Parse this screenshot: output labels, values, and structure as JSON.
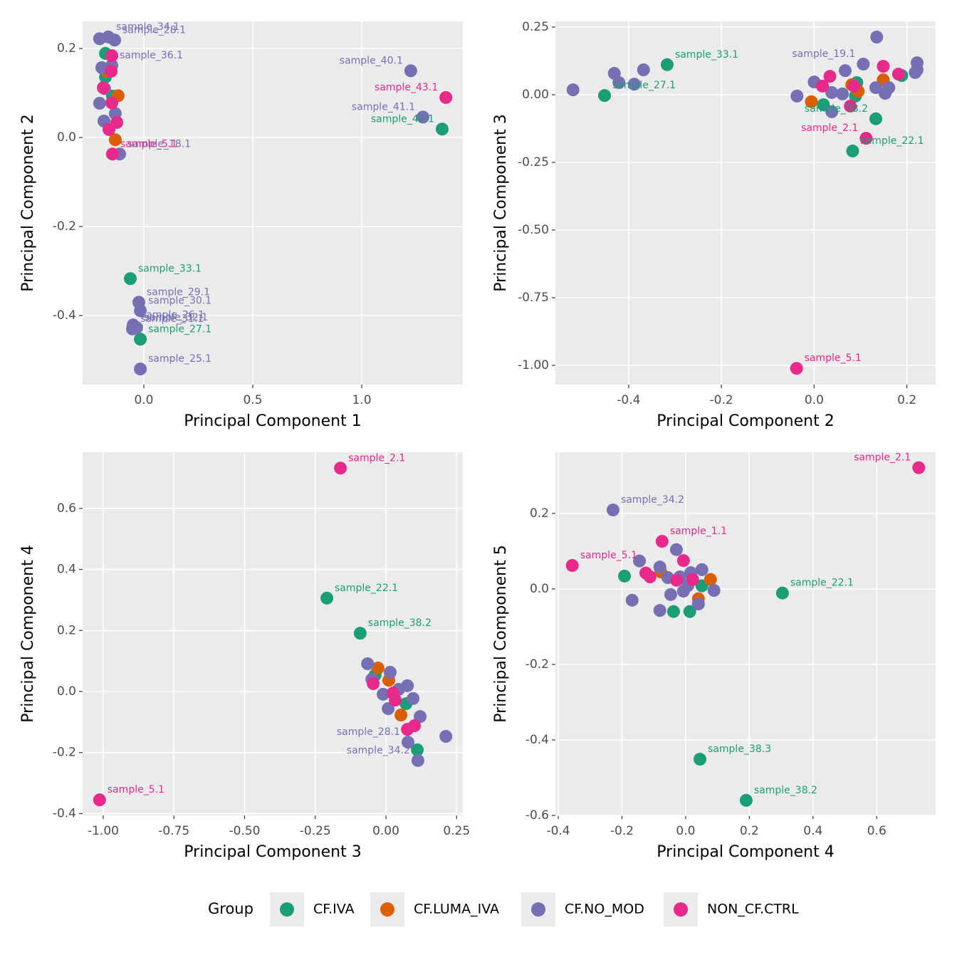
{
  "chart_data": [
    {
      "type": "scatter",
      "xlabel": "Principal Component 1",
      "ylabel": "Principal Component 2",
      "legend_title": "Group",
      "xlim": [
        -0.281,
        1.464
      ],
      "ylim": [
        -0.555,
        0.261
      ],
      "xticks": [
        {
          "value": 0,
          "label": "0.0"
        },
        0.5,
        {
          "value": 1,
          "label": "1.0"
        }
      ],
      "yticks": [
        -0.4,
        -0.2,
        {
          "value": 0,
          "label": "0.0"
        },
        0.2
      ],
      "series": [
        {
          "name": "CF.IVA",
          "color": "#1b9e77",
          "x": [
            -0.176,
            -0.176,
            -0.144,
            -0.062,
            -0.016,
            1.369
          ],
          "values": [
            0.189,
            0.136,
            0.093,
            -0.317,
            -0.453,
            0.019
          ],
          "point_labels": [
            null,
            null,
            null,
            "sample_33.1",
            "sample_27.1",
            "sample_42.1"
          ]
        },
        {
          "name": "CF.LUMA_IVA",
          "color": "#d95f02",
          "x": [
            -0.17,
            -0.118,
            -0.131
          ],
          "values": [
            0.149,
            0.094,
            -0.005
          ],
          "point_labels": [
            null,
            null,
            null
          ]
        },
        {
          "name": "CF.NO_MOD",
          "color": "#7570b3",
          "x": [
            -0.203,
            -0.163,
            -0.134,
            -0.193,
            -0.147,
            -0.18,
            -0.203,
            -0.131,
            -0.183,
            -0.111,
            1.225,
            1.281,
            -0.023,
            -0.016,
            -0.049,
            -0.033,
            -0.052,
            -0.016
          ],
          "values": [
            0.222,
            0.226,
            0.219,
            0.157,
            0.162,
            0.11,
            0.077,
            0.054,
            0.037,
            -0.037,
            0.15,
            0.046,
            -0.37,
            -0.389,
            -0.421,
            -0.427,
            -0.43,
            -0.52
          ],
          "point_labels": [
            null,
            "sample_34.1",
            "sample_28.1",
            null,
            "sample_36.1",
            null,
            null,
            null,
            null,
            "sample_18.1",
            "sample_40.1",
            "sample_41.1",
            "sample_29.1",
            "sample_30.1",
            "sample_26.1",
            "sample_32.1",
            "sample_31.1",
            "sample_25.1"
          ]
        },
        {
          "name": "NON_CF.CTRL",
          "color": "#e7298a",
          "x": [
            -0.147,
            -0.15,
            -0.186,
            -0.147,
            -0.124,
            -0.16,
            -0.144,
            1.386
          ],
          "values": [
            0.184,
            0.149,
            0.112,
            0.078,
            0.034,
            0.018,
            -0.037,
            0.09
          ],
          "point_labels": [
            null,
            null,
            null,
            null,
            null,
            null,
            "sample_5.1",
            "sample_43.1"
          ]
        }
      ]
    },
    {
      "type": "scatter",
      "xlabel": "Principal Component 2",
      "ylabel": "Principal Component 3",
      "xlim": [
        -0.558,
        0.262
      ],
      "ylim": [
        -1.071,
        0.271
      ],
      "xticks": [
        -0.4,
        -0.2,
        {
          "value": 0,
          "label": "0.0"
        },
        0.2
      ],
      "yticks": [
        {
          "value": -1,
          "label": "-1.00"
        },
        -0.75,
        {
          "value": -0.5,
          "label": "-0.50"
        },
        -0.25,
        {
          "value": 0,
          "label": "0.00"
        },
        0.25
      ],
      "series": [
        {
          "name": "CF.IVA",
          "color": "#1b9e77",
          "x": [
            -0.452,
            -0.317,
            0.02,
            0.092,
            0.089,
            0.133,
            0.083,
            0.189
          ],
          "values": [
            -0.003,
            0.111,
            -0.037,
            0.045,
            -0.005,
            -0.089,
            -0.208,
            0.071
          ],
          "point_labels": [
            "sample_27.1",
            "sample_33.1",
            null,
            null,
            null,
            "sample_38.2",
            "sample_22.1",
            null
          ]
        },
        {
          "name": "CF.LUMA_IVA",
          "color": "#d95f02",
          "x": [
            -0.006,
            0.081,
            0.149,
            0.095
          ],
          "values": [
            -0.026,
            0.037,
            0.055,
            0.013
          ],
          "point_labels": [
            null,
            null,
            null,
            null
          ]
        },
        {
          "name": "CF.NO_MOD",
          "color": "#7570b3",
          "x": [
            -0.52,
            -0.431,
            -0.421,
            -0.388,
            -0.368,
            -0.037,
            0.0,
            0.038,
            0.038,
            0.061,
            0.067,
            0.106,
            0.135,
            0.133,
            0.153,
            0.161,
            0.222,
            0.222,
            0.218
          ],
          "values": [
            0.018,
            0.079,
            0.045,
            0.039,
            0.092,
            -0.005,
            0.047,
            0.008,
            -0.063,
            0.003,
            0.089,
            0.113,
            0.213,
            0.026,
            0.005,
            0.026,
            0.118,
            0.092,
            0.082
          ],
          "point_labels": [
            null,
            null,
            null,
            null,
            null,
            null,
            null,
            null,
            null,
            null,
            null,
            "sample_19.1",
            null,
            null,
            null,
            null,
            null,
            null,
            null
          ]
        },
        {
          "name": "NON_CF.CTRL",
          "color": "#e7298a",
          "x": [
            0.018,
            0.034,
            0.086,
            0.078,
            0.112,
            0.149,
            0.182,
            -0.038
          ],
          "values": [
            0.032,
            0.068,
            0.032,
            -0.042,
            -0.161,
            0.105,
            0.076,
            -1.011
          ],
          "point_labels": [
            null,
            null,
            null,
            null,
            "sample_2.1",
            null,
            null,
            "sample_5.1"
          ]
        }
      ]
    },
    {
      "type": "scatter",
      "xlabel": "Principal Component 3",
      "ylabel": "Principal Component 4",
      "xlim": [
        -1.073,
        0.272
      ],
      "ylim": [
        -0.406,
        0.784
      ],
      "xticks": [
        {
          "value": -1,
          "label": "-1.00"
        },
        -0.75,
        {
          "value": -0.5,
          "label": "-0.50"
        },
        -0.25,
        {
          "value": 0,
          "label": "0.00"
        },
        0.25
      ],
      "yticks": [
        -0.4,
        -0.2,
        {
          "value": 0,
          "label": "0.0"
        },
        0.2,
        0.4,
        0.6
      ],
      "series": [
        {
          "name": "CF.IVA",
          "color": "#1b9e77",
          "x": [
            -0.209,
            -0.091,
            -0.038,
            0.071,
            0.111
          ],
          "values": [
            0.306,
            0.191,
            0.054,
            -0.04,
            -0.191
          ],
          "point_labels": [
            "sample_22.1",
            "sample_38.2",
            null,
            null,
            null
          ]
        },
        {
          "name": "CF.LUMA_IVA",
          "color": "#d95f02",
          "x": [
            -0.028,
            0.01,
            0.053
          ],
          "values": [
            0.077,
            0.037,
            -0.077
          ],
          "point_labels": [
            null,
            null,
            null
          ]
        },
        {
          "name": "CF.NO_MOD",
          "color": "#7570b3",
          "x": [
            -0.065,
            -0.05,
            0.015,
            -0.01,
            0.045,
            0.076,
            0.096,
            0.008,
            0.121,
            0.078,
            0.113,
            0.212
          ],
          "values": [
            0.091,
            0.04,
            0.063,
            -0.009,
            0.007,
            0.019,
            -0.023,
            -0.056,
            -0.082,
            -0.166,
            -0.226,
            -0.147
          ],
          "point_labels": [
            null,
            null,
            null,
            null,
            null,
            null,
            null,
            null,
            null,
            "sample_28.1",
            "sample_34.2",
            null
          ]
        },
        {
          "name": "NON_CF.CTRL",
          "color": "#e7298a",
          "x": [
            -0.161,
            -0.045,
            0.025,
            0.033,
            0.076,
            0.101,
            -1.013
          ],
          "values": [
            0.732,
            0.026,
            -0.005,
            -0.028,
            -0.124,
            -0.112,
            -0.355
          ],
          "point_labels": [
            "sample_2.1",
            null,
            null,
            null,
            null,
            null,
            "sample_5.1"
          ]
        }
      ]
    },
    {
      "type": "scatter",
      "xlabel": "Principal Component 4",
      "ylabel": "Principal Component 5",
      "xlim": [
        -0.409,
        0.785
      ],
      "ylim": [
        -0.6,
        0.362
      ],
      "xticks": [
        -0.4,
        -0.2,
        {
          "value": 0,
          "label": "0.0"
        },
        0.2,
        0.4,
        0.6
      ],
      "yticks": [
        -0.6,
        -0.4,
        -0.2,
        {
          "value": 0,
          "label": "0.0"
        },
        0.2
      ],
      "series": [
        {
          "name": "CF.IVA",
          "color": "#1b9e77",
          "x": [
            -0.192,
            -0.038,
            0.013,
            0.051,
            0.304,
            0.045,
            0.19
          ],
          "values": [
            0.034,
            -0.06,
            -0.06,
            0.008,
            -0.011,
            -0.451,
            -0.56
          ],
          "point_labels": [
            null,
            null,
            null,
            null,
            "sample_22.1",
            "sample_38.3",
            "sample_38.2"
          ]
        },
        {
          "name": "CF.LUMA_IVA",
          "color": "#d95f02",
          "x": [
            -0.078,
            0.04,
            0.078
          ],
          "values": [
            0.045,
            -0.026,
            0.025
          ],
          "point_labels": [
            null,
            null,
            null
          ]
        },
        {
          "name": "CF.NO_MOD",
          "color": "#7570b3",
          "x": [
            -0.228,
            -0.145,
            -0.168,
            -0.081,
            -0.056,
            -0.029,
            -0.081,
            -0.047,
            -0.018,
            -0.007,
            0.007,
            0.051,
            0.04,
            0.089,
            0.016
          ],
          "values": [
            0.209,
            0.074,
            -0.03,
            0.058,
            0.03,
            0.104,
            -0.057,
            -0.015,
            0.032,
            -0.006,
            0.009,
            0.051,
            -0.04,
            -0.004,
            0.043
          ],
          "point_labels": [
            "sample_34.2",
            null,
            null,
            null,
            null,
            null,
            null,
            null,
            null,
            null,
            null,
            null,
            null,
            null,
            null
          ]
        },
        {
          "name": "NON_CF.CTRL",
          "color": "#e7298a",
          "x": [
            0.732,
            -0.356,
            -0.074,
            -0.125,
            -0.112,
            -0.029,
            -0.007,
            0.022
          ],
          "values": [
            0.321,
            0.062,
            0.126,
            0.042,
            0.032,
            0.023,
            0.075,
            0.025
          ],
          "point_labels": [
            "sample_2.1",
            "sample_5.1",
            "sample_1.1",
            null,
            null,
            null,
            null,
            null
          ]
        }
      ]
    }
  ]
}
